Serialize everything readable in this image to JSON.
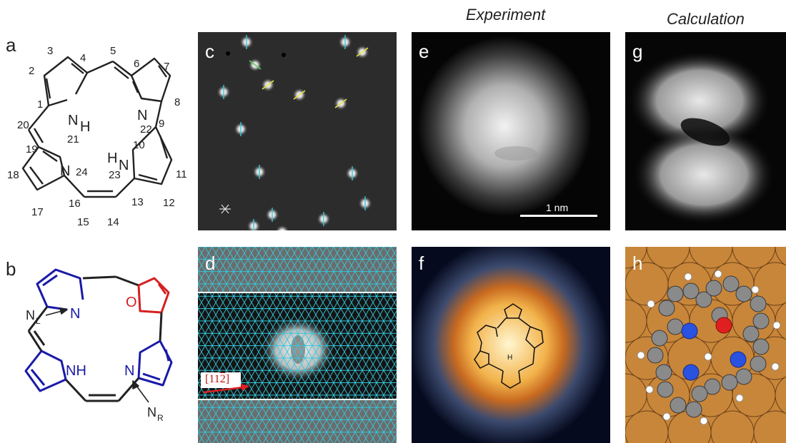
{
  "headers": {
    "experiment": "Experiment",
    "calculation": "Calculation"
  },
  "panel_letters": {
    "a": "a",
    "b": "b",
    "c": "c",
    "d": "d",
    "e": "e",
    "f": "f",
    "g": "g",
    "h": "h"
  },
  "panel_a": {
    "atom_numbers": [
      "1",
      "2",
      "3",
      "4",
      "5",
      "6",
      "7",
      "8",
      "9",
      "10",
      "11",
      "12",
      "13",
      "14",
      "15",
      "16",
      "17",
      "18",
      "19",
      "20",
      "21",
      "22",
      "23",
      "24"
    ],
    "atoms": {
      "nh_top": "N",
      "h_top": "H",
      "n22": "N",
      "h_right": "H",
      "n_right": "N",
      "n24": "N"
    }
  },
  "panel_b": {
    "atoms": {
      "n_left": "N",
      "o": "O",
      "nh": "NH",
      "n_right": "N"
    },
    "labels": {
      "nl": "N",
      "nl_sub": "L",
      "nr": "N",
      "nr_sub": "R"
    }
  },
  "panel_d": {
    "direction_label": "[11",
    "direction_bar": "2",
    "direction_close": "]"
  },
  "panel_e": {
    "scalebar": "1 nm"
  },
  "panel_f": {
    "h_label": "H"
  },
  "colors": {
    "pyrrole": "#1a1aa8",
    "furan": "#d42020",
    "lattice": "#32c8dc",
    "substrate": "#c8863a",
    "carbon": "#8a8a8a",
    "nitrogen": "#2a52e0",
    "oxygen": "#e02020",
    "hydrogen": "#ffffff"
  }
}
